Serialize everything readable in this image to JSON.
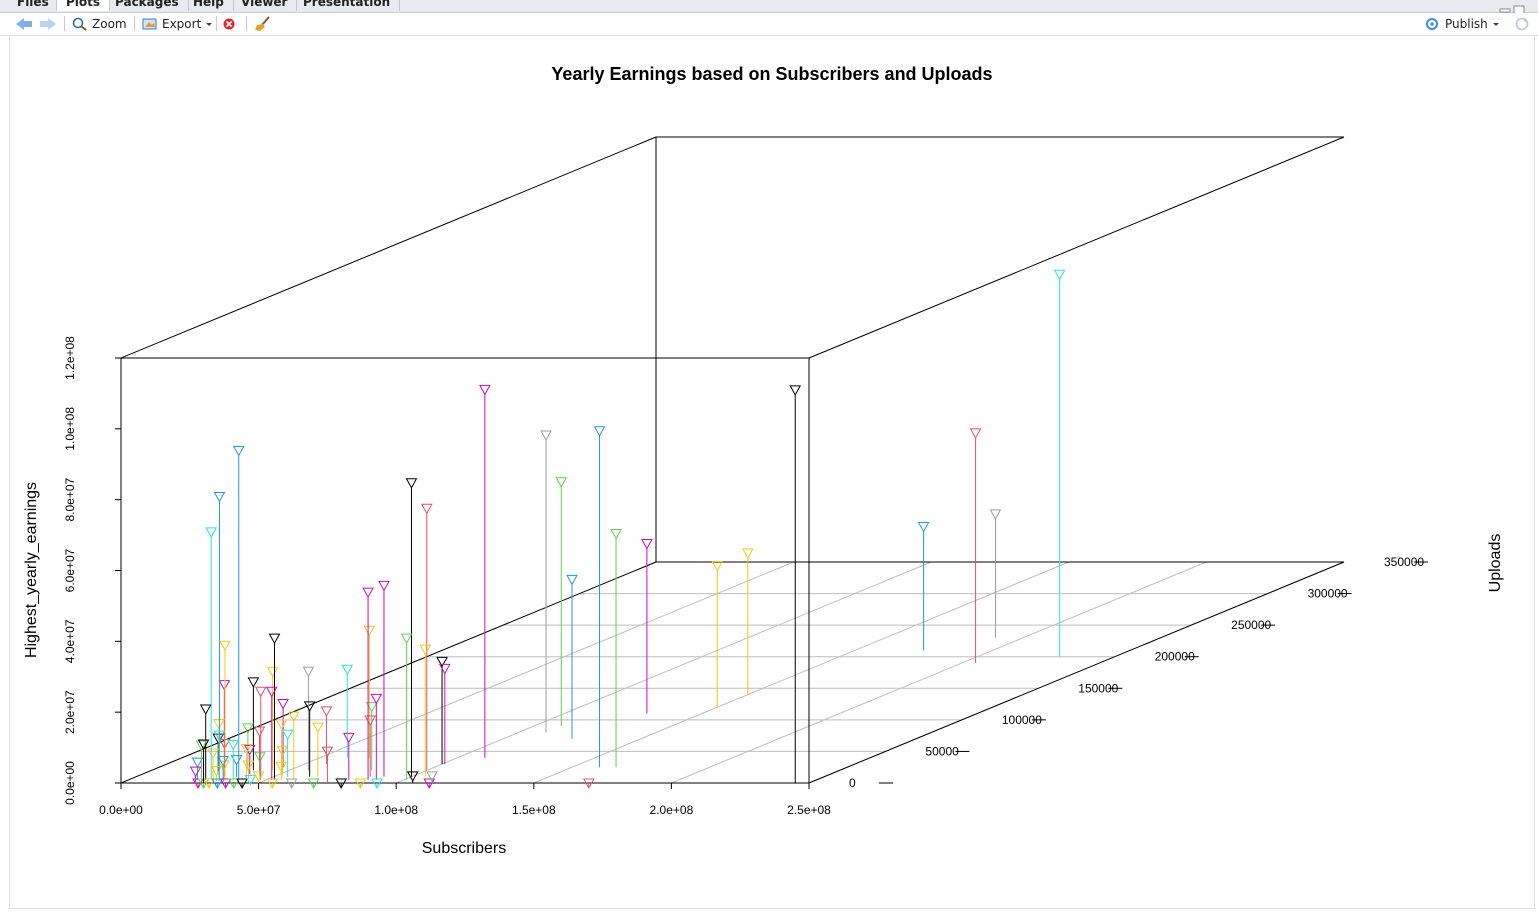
{
  "tabs": [
    "Files",
    "Plots",
    "Packages",
    "Help",
    "Viewer",
    "Presentation"
  ],
  "active_tab": "Plots",
  "toolbar": {
    "zoom_label": "Zoom",
    "export_label": "Export",
    "publish_label": "Publish"
  },
  "colors": {
    "axis": "#000000",
    "grid": "#bebebe",
    "palette": [
      "#000000",
      "#df536b",
      "#61d04f",
      "#2297e6",
      "#28e2e5",
      "#cd0bbc",
      "#f5c710",
      "#9e9e9e"
    ]
  },
  "chart_data": {
    "type": "scatter",
    "subtype": "3d-scatter-with-drop-lines",
    "title": "Yearly Earnings based on Subscribers and Uploads",
    "xlabel": "Subscribers",
    "ylabel": "Uploads",
    "zlabel": "Highest_yearly_earnings",
    "xlim": [
      0,
      250000000
    ],
    "ylim": [
      0,
      350000
    ],
    "zlim": [
      0,
      120000000
    ],
    "x_ticks": [
      "0.0e+00",
      "5.0e+07",
      "1.0e+08",
      "1.5e+08",
      "2.0e+08",
      "2.5e+08"
    ],
    "y_ticks": [
      "0",
      "50000",
      "100000",
      "150000",
      "200000",
      "250000",
      "300000",
      "350000"
    ],
    "z_ticks": [
      "0.0e+00",
      "2.0e+07",
      "4.0e+07",
      "6.0e+07",
      "8.0e+07",
      "1.0e+08",
      "1.2e+08"
    ],
    "grid": true,
    "marker": "down-triangle",
    "points": [
      {
        "x": 245000000,
        "y": 0,
        "z": 111000000,
        "c": 0
      },
      {
        "x": 170000000,
        "y": 0,
        "z": 0,
        "c": 1
      },
      {
        "x": 160000000,
        "y": 25000,
        "z": 95000000,
        "c": 3
      },
      {
        "x": 166000000,
        "y": 25000,
        "z": 66000000,
        "c": 2
      },
      {
        "x": 112000000,
        "y": 0,
        "z": 0,
        "c": 5
      },
      {
        "x": 106000000,
        "y": 0,
        "z": 2000000,
        "c": 0
      },
      {
        "x": 113000000,
        "y": 0,
        "z": 2000000,
        "c": 7
      },
      {
        "x": 110000000,
        "y": 40000,
        "z": 104000000,
        "c": 5
      },
      {
        "x": 110000000,
        "y": 80000,
        "z": 84000000,
        "c": 7
      },
      {
        "x": 110000000,
        "y": 90000,
        "z": 69000000,
        "c": 2
      },
      {
        "x": 100000000,
        "y": 10000,
        "z": 83000000,
        "c": 0
      },
      {
        "x": 100000000,
        "y": 20000,
        "z": 74000000,
        "c": 1
      },
      {
        "x": 100000000,
        "y": 30000,
        "z": 29000000,
        "c": 0
      },
      {
        "x": 101000000,
        "y": 30000,
        "z": 27000000,
        "c": 5
      },
      {
        "x": 101000000,
        "y": 5000,
        "z": 40000000,
        "c": 2
      },
      {
        "x": 105000000,
        "y": 10000,
        "z": 36000000,
        "c": 6
      },
      {
        "x": 90000000,
        "y": 10000,
        "z": 54000000,
        "c": 5
      },
      {
        "x": 87000000,
        "y": 5000,
        "z": 53000000,
        "c": 5
      },
      {
        "x": 85000000,
        "y": 10000,
        "z": 16000000,
        "c": 1
      },
      {
        "x": 90000000,
        "y": 5000,
        "z": 23000000,
        "c": 5
      },
      {
        "x": 80000000,
        "y": 5000,
        "z": 12000000,
        "c": 5
      },
      {
        "x": 80000000,
        "y": 20000,
        "z": 18000000,
        "c": 2
      },
      {
        "x": 75000000,
        "y": 0,
        "z": 9000000,
        "c": 1
      },
      {
        "x": 66000000,
        "y": 10000,
        "z": 14000000,
        "c": 6
      },
      {
        "x": 68000000,
        "y": 40000,
        "z": 36000000,
        "c": 6
      },
      {
        "x": 125000000,
        "y": 70000,
        "z": 45000000,
        "c": 3
      },
      {
        "x": 130000000,
        "y": 110000,
        "z": 48000000,
        "c": 5
      },
      {
        "x": 150000000,
        "y": 120000,
        "z": 40000000,
        "c": 6
      },
      {
        "x": 150000000,
        "y": 140000,
        "z": 40000000,
        "c": 6
      },
      {
        "x": 175000000,
        "y": 210000,
        "z": 35000000,
        "c": 3
      },
      {
        "x": 190000000,
        "y": 230000,
        "z": 35000000,
        "c": 7
      },
      {
        "x": 205000000,
        "y": 190000,
        "z": 65000000,
        "c": 1
      },
      {
        "x": 230000000,
        "y": 200000,
        "z": 108000000,
        "c": 4
      },
      {
        "x": 40000000,
        "y": 5000,
        "z": 93000000,
        "c": 3
      },
      {
        "x": 33000000,
        "y": 5000,
        "z": 80000000,
        "c": 3
      },
      {
        "x": 30000000,
        "y": 5000,
        "z": 70000000,
        "c": 4
      },
      {
        "x": 53000000,
        "y": 5000,
        "z": 40000000,
        "c": 0
      },
      {
        "x": 35000000,
        "y": 5000,
        "z": 38000000,
        "c": 6
      },
      {
        "x": 44000000,
        "y": 20000,
        "z": 28000000,
        "c": 6
      },
      {
        "x": 60000000,
        "y": 40000,
        "z": 25000000,
        "c": 4
      },
      {
        "x": 57000000,
        "y": 20000,
        "z": 28000000,
        "c": 7
      },
      {
        "x": 37000000,
        "y": 20000,
        "z": 25000000,
        "c": 0
      },
      {
        "x": 32000000,
        "y": 10000,
        "z": 26000000,
        "c": 5
      },
      {
        "x": 28000000,
        "y": 5000,
        "z": 20000000,
        "c": 0
      },
      {
        "x": 48000000,
        "y": 5000,
        "z": 25000000,
        "c": 1
      },
      {
        "x": 52000000,
        "y": 5000,
        "z": 25000000,
        "c": 5
      },
      {
        "x": 60000000,
        "y": 5000,
        "z": 18000000,
        "c": 6
      },
      {
        "x": 63000000,
        "y": 10000,
        "z": 20000000,
        "c": 0
      },
      {
        "x": 25000000,
        "y": 5000,
        "z": 5000000,
        "c": 3
      },
      {
        "x": 27000000,
        "y": 15000,
        "z": 10000000,
        "c": 0
      },
      {
        "x": 30000000,
        "y": 10000,
        "z": 15000000,
        "c": 6
      },
      {
        "x": 35000000,
        "y": 20000,
        "z": 12000000,
        "c": 2
      },
      {
        "x": 38000000,
        "y": 5000,
        "z": 10000000,
        "c": 4
      },
      {
        "x": 40000000,
        "y": 10000,
        "z": 8000000,
        "c": 6
      },
      {
        "x": 42000000,
        "y": 15000,
        "z": 12000000,
        "c": 1
      },
      {
        "x": 45000000,
        "y": 25000,
        "z": 18000000,
        "c": 5
      },
      {
        "x": 50000000,
        "y": 15000,
        "z": 14000000,
        "c": 6
      },
      {
        "x": 55000000,
        "y": 10000,
        "z": 12000000,
        "c": 4
      },
      {
        "x": 58000000,
        "y": 30000,
        "z": 15000000,
        "c": 1
      },
      {
        "x": 33000000,
        "y": 3000,
        "z": 3000000,
        "c": 6
      },
      {
        "x": 36000000,
        "y": 2000,
        "z": 6000000,
        "c": 3
      },
      {
        "x": 28000000,
        "y": 0,
        "z": 0,
        "c": 5
      },
      {
        "x": 30000000,
        "y": 0,
        "z": 0,
        "c": 2
      },
      {
        "x": 32000000,
        "y": 0,
        "z": 0,
        "c": 6
      },
      {
        "x": 35000000,
        "y": 0,
        "z": 0,
        "c": 3
      },
      {
        "x": 38000000,
        "y": 0,
        "z": 0,
        "c": 5
      },
      {
        "x": 41000000,
        "y": 0,
        "z": 0,
        "c": 2
      },
      {
        "x": 44000000,
        "y": 0,
        "z": 0,
        "c": 0
      },
      {
        "x": 47000000,
        "y": 0,
        "z": 1000000,
        "c": 4
      },
      {
        "x": 50000000,
        "y": 0,
        "z": 2000000,
        "c": 6
      },
      {
        "x": 55000000,
        "y": 0,
        "z": 0,
        "c": 6
      },
      {
        "x": 62000000,
        "y": 0,
        "z": 0,
        "c": 7
      },
      {
        "x": 70000000,
        "y": 0,
        "z": 0,
        "c": 2
      },
      {
        "x": 80000000,
        "y": 0,
        "z": 0,
        "c": 0
      },
      {
        "x": 87000000,
        "y": 0,
        "z": 0,
        "c": 6
      },
      {
        "x": 93000000,
        "y": 0,
        "z": 0,
        "c": 4
      },
      {
        "x": 29000000,
        "y": 8000,
        "z": 7000000,
        "c": 6
      },
      {
        "x": 31000000,
        "y": 12000,
        "z": 9000000,
        "c": 1
      },
      {
        "x": 34000000,
        "y": 6000,
        "z": 4000000,
        "c": 6
      },
      {
        "x": 37000000,
        "y": 9000,
        "z": 5000000,
        "c": 3
      },
      {
        "x": 39000000,
        "y": 14000,
        "z": 7000000,
        "c": 5
      },
      {
        "x": 43000000,
        "y": 6000,
        "z": 4000000,
        "c": 6
      },
      {
        "x": 46000000,
        "y": 8000,
        "z": 6000000,
        "c": 2
      },
      {
        "x": 27000000,
        "y": 4000,
        "z": 10000000,
        "c": 2
      },
      {
        "x": 26000000,
        "y": 2000,
        "z": 3000000,
        "c": 5
      },
      {
        "x": 52000000,
        "y": 12000,
        "z": 7000000,
        "c": 6
      },
      {
        "x": 56000000,
        "y": 4000,
        "z": 4000000,
        "c": 6
      },
      {
        "x": 30000000,
        "y": 0,
        "z": 11000000,
        "c": 0
      },
      {
        "x": 34000000,
        "y": 3000,
        "z": 13000000,
        "c": 4
      }
    ]
  }
}
